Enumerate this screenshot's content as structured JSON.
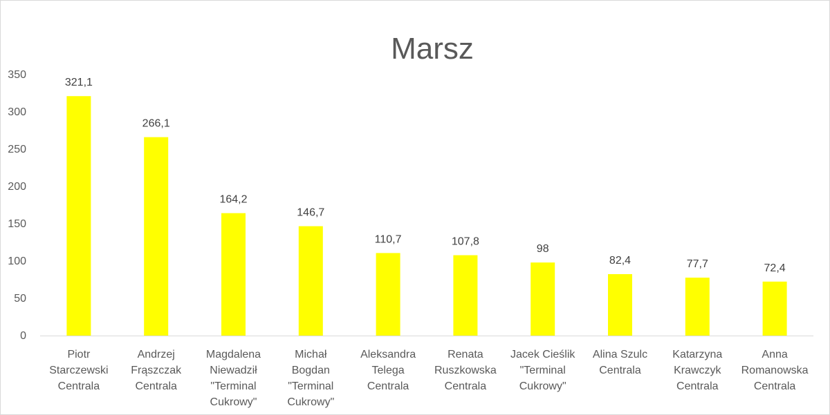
{
  "chart_data": {
    "type": "bar",
    "title": "Marsz",
    "categories": [
      [
        "Piotr",
        "Starczewski",
        "Centrala"
      ],
      [
        "Andrzej",
        "Frąszczak",
        "Centrala"
      ],
      [
        "Magdalena",
        "Niewadził",
        "\"Terminal",
        "Cukrowy\""
      ],
      [
        "Michał",
        "Bogdan",
        "\"Terminal",
        "Cukrowy\""
      ],
      [
        "Aleksandra",
        "Telega",
        "Centrala"
      ],
      [
        "Renata",
        "Ruszkowska",
        "Centrala"
      ],
      [
        "Jacek Cieślik",
        "\"Terminal",
        "Cukrowy\""
      ],
      [
        "Alina Szulc",
        "Centrala"
      ],
      [
        "Katarzyna",
        "Krawczyk",
        "Centrala"
      ],
      [
        "Anna",
        "Romanowska",
        "Centrala"
      ]
    ],
    "values": [
      321.1,
      266.1,
      164.2,
      146.7,
      110.7,
      107.8,
      98,
      82.4,
      77.7,
      72.4
    ],
    "data_labels": [
      "321,1",
      "266,1",
      "164,2",
      "146,7",
      "110,7",
      "107,8",
      "98",
      "82,4",
      "77,7",
      "72,4"
    ],
    "yticks": [
      "0",
      "50",
      "100",
      "150",
      "200",
      "250",
      "300",
      "350"
    ],
    "ylim": [
      0,
      350
    ],
    "xlabel": "",
    "ylabel": "",
    "bar_color": "#FFFF00",
    "grid": false,
    "legend": false
  }
}
